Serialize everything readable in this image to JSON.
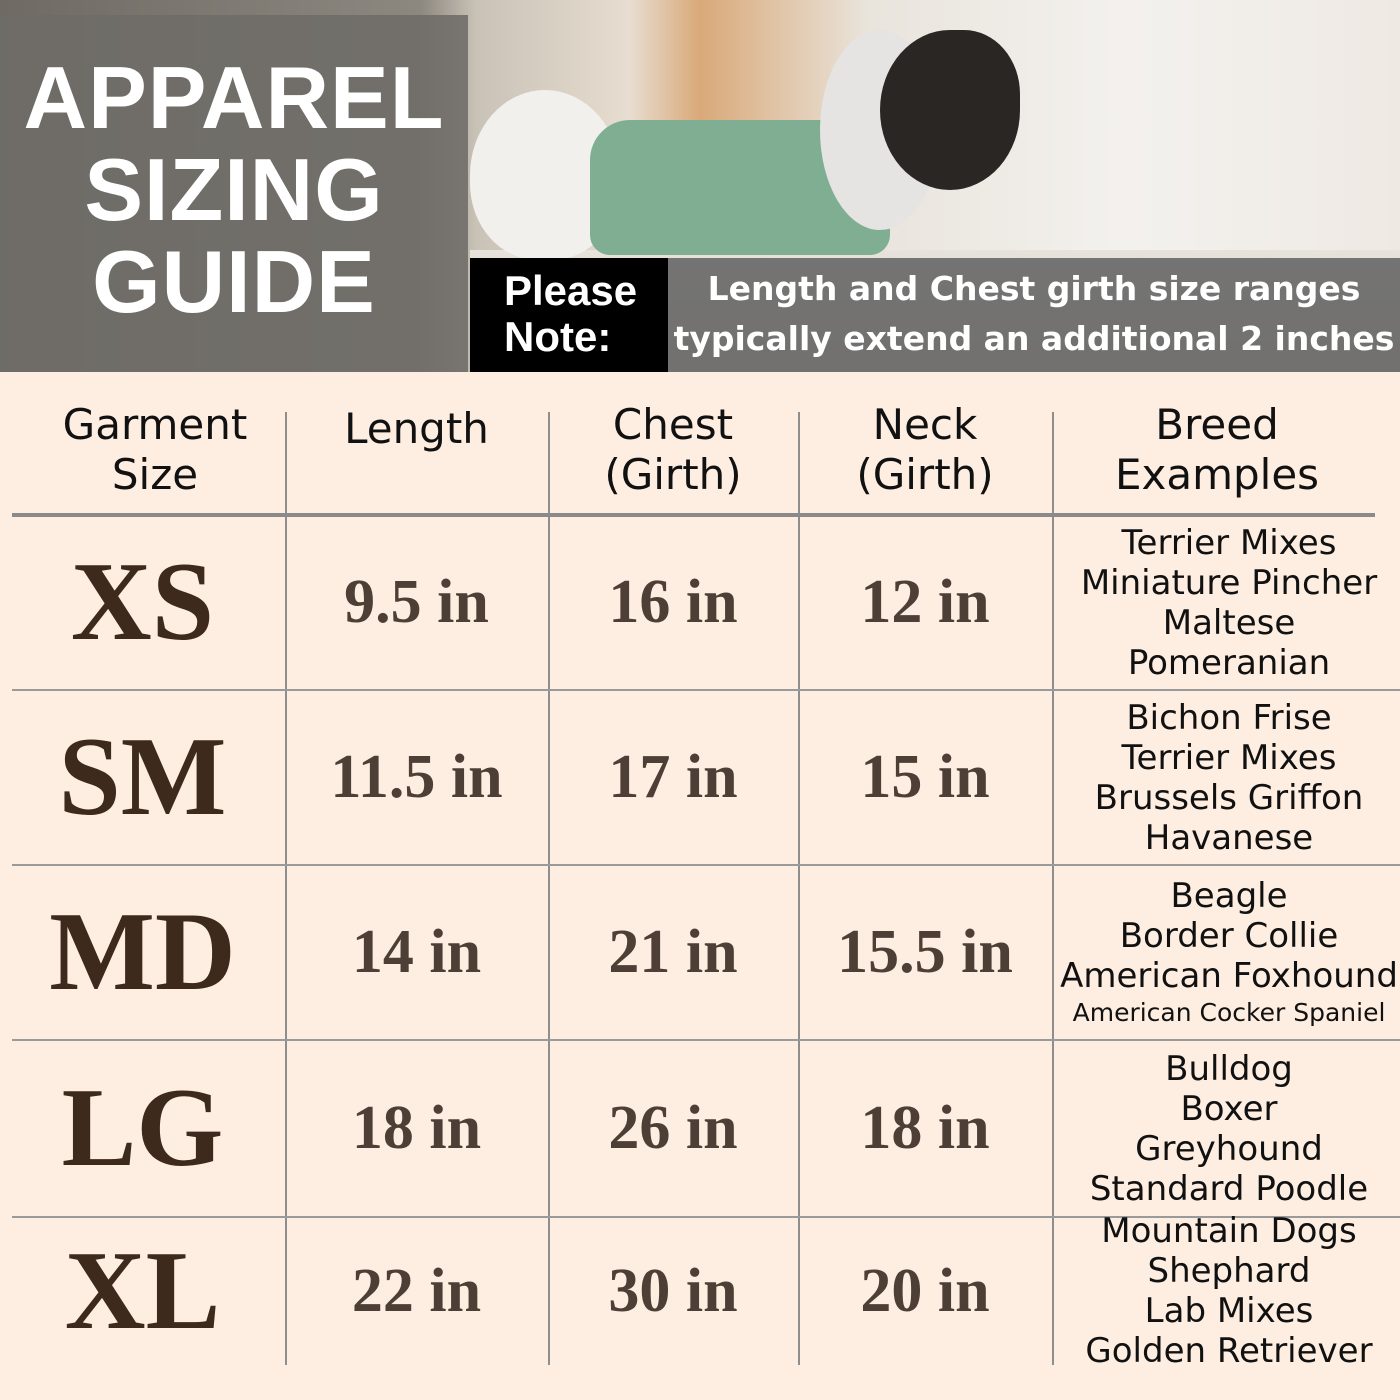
{
  "header": {
    "title_lines": [
      "APPAREL",
      "SIZING",
      "GUIDE"
    ],
    "note_label_lines": [
      "Please",
      "Note:"
    ],
    "note_text_lines": [
      "Length and Chest girth size ranges",
      "typically extend an additional 2 inches"
    ]
  },
  "table": {
    "columns": [
      [
        "Garment",
        "Size"
      ],
      [
        "Length"
      ],
      [
        "Chest",
        "(Girth)"
      ],
      [
        "Neck",
        "(Girth)"
      ],
      [
        "Breed",
        "Examples"
      ]
    ],
    "rows": [
      {
        "size": "XS",
        "length": "9.5 in",
        "chest": "16 in",
        "neck": "12 in",
        "breeds": [
          "Terrier Mixes",
          "Miniature Pincher",
          "Maltese",
          "Pomeranian"
        ]
      },
      {
        "size": "SM",
        "length": "11.5 in",
        "chest": "17 in",
        "neck": "15 in",
        "breeds": [
          "Bichon Frise",
          "Terrier Mixes",
          "Brussels Griffon",
          "Havanese"
        ]
      },
      {
        "size": "MD",
        "length": "14 in",
        "chest": "21 in",
        "neck": "15.5 in",
        "breeds": [
          "Beagle",
          "Border Collie",
          "American Foxhound",
          "American Cocker Spaniel"
        ]
      },
      {
        "size": "LG",
        "length": "18 in",
        "chest": "26 in",
        "neck": "18 in",
        "breeds": [
          "Bulldog",
          "Boxer",
          "Greyhound",
          "Standard Poodle"
        ]
      },
      {
        "size": "XL",
        "length": "22 in",
        "chest": "30 in",
        "neck": "20 in",
        "breeds": [
          "Mountain Dogs",
          "Shephard",
          "Lab Mixes",
          "Golden Retriever"
        ]
      }
    ]
  },
  "colors": {
    "background": "#fdeee1",
    "size_text": "#3e2a1c",
    "value_text": "#4d3f36",
    "note_box": "#000000"
  }
}
